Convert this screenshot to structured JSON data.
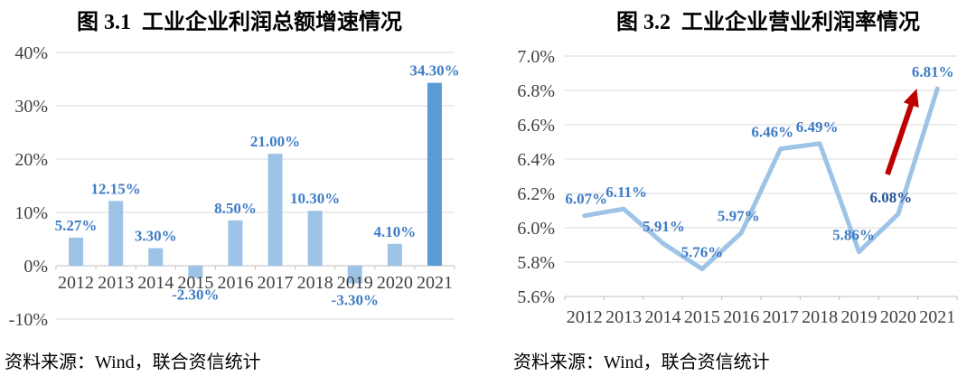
{
  "chart_data": [
    {
      "type": "bar",
      "title": "图 3.1  工业企业利润总额增速情况",
      "source": "资料来源：Wind，联合资信统计",
      "categories": [
        "2012",
        "2013",
        "2014",
        "2015",
        "2016",
        "2017",
        "2018",
        "2019",
        "2020",
        "2021"
      ],
      "values": [
        5.27,
        12.15,
        3.3,
        -2.3,
        8.5,
        21.0,
        10.3,
        -3.3,
        4.1,
        34.3
      ],
      "point_labels": [
        "5.27%",
        "12.15%",
        "3.30%",
        "-2.30%",
        "8.50%",
        "21.00%",
        "10.30%",
        "-3.30%",
        "4.10%",
        "34.30%"
      ],
      "y_ticks": [
        {
          "v": 40,
          "label": "40%"
        },
        {
          "v": 30,
          "label": "30%"
        },
        {
          "v": 20,
          "label": "20%"
        },
        {
          "v": 10,
          "label": "10%"
        },
        {
          "v": 0,
          "label": "0%"
        },
        {
          "v": -10,
          "label": "-10%"
        }
      ],
      "ylim": [
        -10,
        40
      ],
      "grid": true,
      "legend": "none",
      "highlight_index": 9,
      "colors": {
        "bar": "#9DC3E6",
        "highlight_bar": "#5B9BD5",
        "label": "#3E7CC5"
      }
    },
    {
      "type": "line",
      "title": "图 3.2  工业企业营业利润率情况",
      "source": "资料来源：Wind，联合资信统计",
      "categories": [
        "2012",
        "2013",
        "2014",
        "2015",
        "2016",
        "2017",
        "2018",
        "2019",
        "2020",
        "2021"
      ],
      "values": [
        6.07,
        6.11,
        5.91,
        5.76,
        5.97,
        6.46,
        6.49,
        5.86,
        6.08,
        6.81
      ],
      "point_labels": [
        "6.07%",
        "6.11%",
        "5.91%",
        "5.76%",
        "5.97%",
        "6.46%",
        "6.49%",
        "5.86%",
        "6.08%",
        "6.81%"
      ],
      "y_ticks": [
        {
          "v": 7.0,
          "label": "7.0%"
        },
        {
          "v": 6.8,
          "label": "6.8%"
        },
        {
          "v": 6.6,
          "label": "6.6%"
        },
        {
          "v": 6.4,
          "label": "6.4%"
        },
        {
          "v": 6.2,
          "label": "6.2%"
        },
        {
          "v": 6.0,
          "label": "6.0%"
        },
        {
          "v": 5.8,
          "label": "5.8%"
        },
        {
          "v": 5.6,
          "label": "5.6%"
        }
      ],
      "ylim": [
        5.6,
        7.0
      ],
      "grid": true,
      "legend": "none",
      "emphasis_index": 8,
      "label_dx": [
        2,
        3,
        1,
        0,
        -3,
        -9,
        -3,
        -6,
        -8,
        -5
      ],
      "annotation": {
        "type": "arrow",
        "meaning": "sharp-rise-highlight"
      },
      "colors": {
        "line": "#9DC3E6",
        "label": "#3E7CC5",
        "emphasis_label": "#2A5699",
        "arrow": "#C00000"
      }
    }
  ],
  "ui_colors": {
    "grid": "#D9D9D9",
    "axis": "#BFBFBF",
    "tick_text": "#404040",
    "title_text": "#000000"
  }
}
